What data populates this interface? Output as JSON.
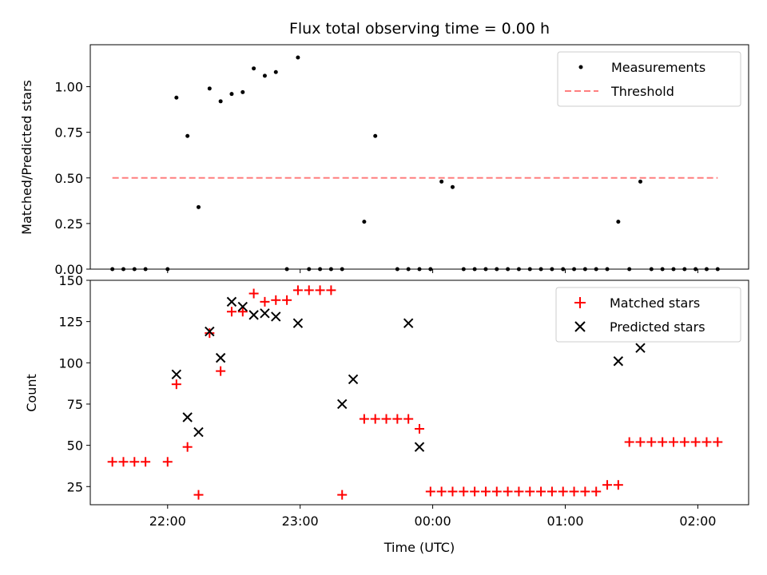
{
  "title": "Flux total observing time = 0.00 h",
  "chart_data": [
    {
      "type": "scatter",
      "panel": "top",
      "ylabel": "Matched/Predicted stars",
      "ylim": [
        0,
        1.23
      ],
      "xlim": [
        "21:25",
        "02:23"
      ],
      "yticks": [
        0.0,
        0.25,
        0.5,
        0.75,
        1.0
      ],
      "ytick_labels": [
        "0.00",
        "0.25",
        "0.50",
        "0.75",
        "1.00"
      ],
      "legend_position": "top-right",
      "series": [
        {
          "name": "Measurements",
          "marker": "dot",
          "color": "#000000",
          "x": [
            "21:35",
            "21:40",
            "21:45",
            "21:50",
            "22:00",
            "22:04",
            "22:09",
            "22:14",
            "22:19",
            "22:24",
            "22:29",
            "22:34",
            "22:39",
            "22:44",
            "22:49",
            "22:54",
            "22:59",
            "23:04",
            "23:09",
            "23:14",
            "23:19",
            "23:29",
            "23:34",
            "23:44",
            "23:49",
            "23:54",
            "23:59",
            "00:04",
            "00:09",
            "00:14",
            "00:19",
            "00:24",
            "00:29",
            "00:34",
            "00:39",
            "00:44",
            "00:49",
            "00:54",
            "00:59",
            "01:04",
            "01:09",
            "01:14",
            "01:19",
            "01:24",
            "01:29",
            "01:34",
            "01:39",
            "01:44",
            "01:49",
            "01:54",
            "01:59",
            "02:04",
            "02:09"
          ],
          "y": [
            0,
            0,
            0,
            0,
            0,
            0.94,
            0.73,
            0.34,
            0.99,
            0.92,
            0.96,
            0.97,
            1.1,
            1.06,
            1.08,
            0,
            1.16,
            0,
            0,
            0,
            0,
            0.26,
            0.73,
            0,
            0,
            0,
            0,
            0.48,
            0.45,
            0,
            0,
            0,
            0,
            0,
            0,
            0,
            0,
            0,
            0,
            0,
            0,
            0,
            0,
            0.26,
            0,
            0.48,
            0,
            0,
            0,
            0,
            0,
            0,
            0
          ]
        },
        {
          "name": "Threshold",
          "style": "dashed",
          "color": "#ff7f7f",
          "x": [
            "21:35",
            "02:09"
          ],
          "y": [
            0.5,
            0.5
          ]
        }
      ]
    },
    {
      "type": "scatter",
      "panel": "bottom",
      "xlabel": "Time (UTC)",
      "ylabel": "Count",
      "ylim": [
        14,
        150
      ],
      "xlim": [
        "21:25",
        "02:23"
      ],
      "xticks": [
        "22:00",
        "23:00",
        "00:00",
        "01:00",
        "02:00"
      ],
      "yticks": [
        25,
        50,
        75,
        100,
        125,
        150
      ],
      "legend_position": "top-right",
      "series": [
        {
          "name": "Matched stars",
          "marker": "plus",
          "color": "#ff0000",
          "x": [
            "21:35",
            "21:40",
            "21:45",
            "21:50",
            "22:00",
            "22:04",
            "22:09",
            "22:14",
            "22:19",
            "22:24",
            "22:29",
            "22:34",
            "22:39",
            "22:44",
            "22:49",
            "22:54",
            "22:59",
            "23:04",
            "23:09",
            "23:14",
            "23:19",
            "23:29",
            "23:34",
            "23:39",
            "23:44",
            "23:49",
            "23:54",
            "23:59",
            "00:04",
            "00:09",
            "00:14",
            "00:19",
            "00:24",
            "00:29",
            "00:34",
            "00:39",
            "00:44",
            "00:49",
            "00:54",
            "00:59",
            "01:04",
            "01:09",
            "01:14",
            "01:19",
            "01:24",
            "01:29",
            "01:34",
            "01:39",
            "01:44",
            "01:49",
            "01:54",
            "01:59",
            "02:04",
            "02:09"
          ],
          "y": [
            40,
            40,
            40,
            40,
            40,
            87,
            49,
            20,
            118,
            95,
            131,
            131,
            142,
            137,
            138,
            138,
            144,
            144,
            144,
            144,
            20,
            66,
            66,
            66,
            66,
            66,
            60,
            22,
            22,
            22,
            22,
            22,
            22,
            22,
            22,
            22,
            22,
            22,
            22,
            22,
            22,
            22,
            22,
            26,
            26,
            52,
            52,
            52,
            52,
            52,
            52,
            52,
            52,
            52
          ]
        },
        {
          "name": "Predicted stars",
          "marker": "x",
          "color": "#000000",
          "x": [
            "22:04",
            "22:09",
            "22:14",
            "22:19",
            "22:24",
            "22:29",
            "22:34",
            "22:39",
            "22:44",
            "22:49",
            "22:59",
            "23:19",
            "23:24",
            "23:49",
            "23:54",
            "01:24",
            "01:34"
          ],
          "y": [
            93,
            67,
            58,
            119,
            103,
            137,
            134,
            129,
            130,
            128,
            124,
            75,
            90,
            124,
            49,
            101,
            109
          ]
        }
      ]
    }
  ]
}
